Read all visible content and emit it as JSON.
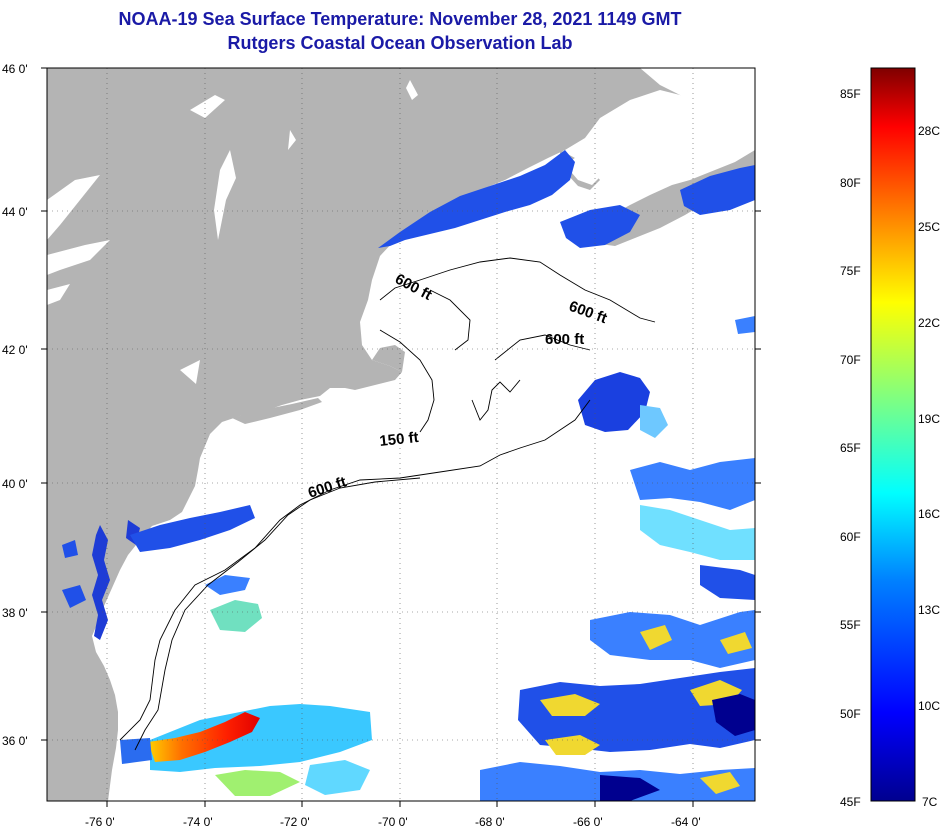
{
  "header": {
    "title": "NOAA-19 Sea Surface Temperature:  November 28, 2021 1149 GMT",
    "subtitle": "Rutgers Coastal Ocean Observation Lab"
  },
  "map": {
    "lat_labels": [
      "46 0'",
      "44 0'",
      "42 0'",
      "40 0'",
      "38 0'",
      "36 0'"
    ],
    "lon_labels": [
      "-76 0'",
      "-74 0'",
      "-72 0'",
      "-70 0'",
      "-68 0'",
      "-66 0'",
      "-64 0'"
    ],
    "contour_labels": [
      "600 ft",
      "600 ft",
      "600 ft",
      "150 ft",
      "600 ft"
    ]
  },
  "colorbar": {
    "fahrenheit_labels": [
      "85F",
      "80F",
      "75F",
      "70F",
      "65F",
      "60F",
      "55F",
      "50F",
      "45F"
    ],
    "celsius_labels": [
      "28C",
      "25C",
      "22C",
      "19C",
      "16C",
      "13C",
      "10C",
      "7C"
    ],
    "colors": [
      "#7f0000",
      "#ff0000",
      "#ff8000",
      "#ffff00",
      "#80ff80",
      "#00ffff",
      "#0080ff",
      "#0000ff",
      "#00008f"
    ]
  }
}
